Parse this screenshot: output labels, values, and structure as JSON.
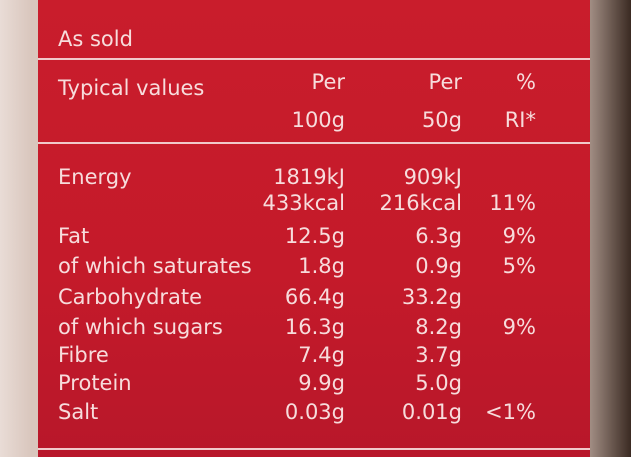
{
  "section_title": "As sold",
  "columns": {
    "label": "Typical values",
    "per_100g": [
      "Per",
      "100g"
    ],
    "per_50g": [
      "Per",
      "50g"
    ],
    "ri": [
      "%",
      "RI*"
    ]
  },
  "rows": [
    {
      "label": "Energy",
      "per_100g": "1819kJ",
      "per_50g": "909kJ"
    },
    {
      "per_100g": "433kcal",
      "per_50g": "216kcal",
      "ri": "11%"
    },
    {
      "label": "Fat",
      "per_100g": "12.5g",
      "per_50g": "6.3g",
      "ri": "9%"
    },
    {
      "label": "of which saturates",
      "per_100g": "1.8g",
      "per_50g": "0.9g",
      "ri": "5%"
    },
    {
      "label": "Carbohydrate",
      "per_100g": "66.4g",
      "per_50g": "33.2g"
    },
    {
      "label": "of which sugars",
      "per_100g": "16.3g",
      "per_50g": "8.2g",
      "ri": "9%"
    },
    {
      "label": "Fibre",
      "per_100g": "7.4g",
      "per_50g": "3.7g"
    },
    {
      "label": "Protein",
      "per_100g": "9.9g",
      "per_50g": "5.0g"
    },
    {
      "label": "Salt",
      "per_100g": "0.03g",
      "per_50g": "0.01g",
      "ri": "<1%"
    }
  ]
}
